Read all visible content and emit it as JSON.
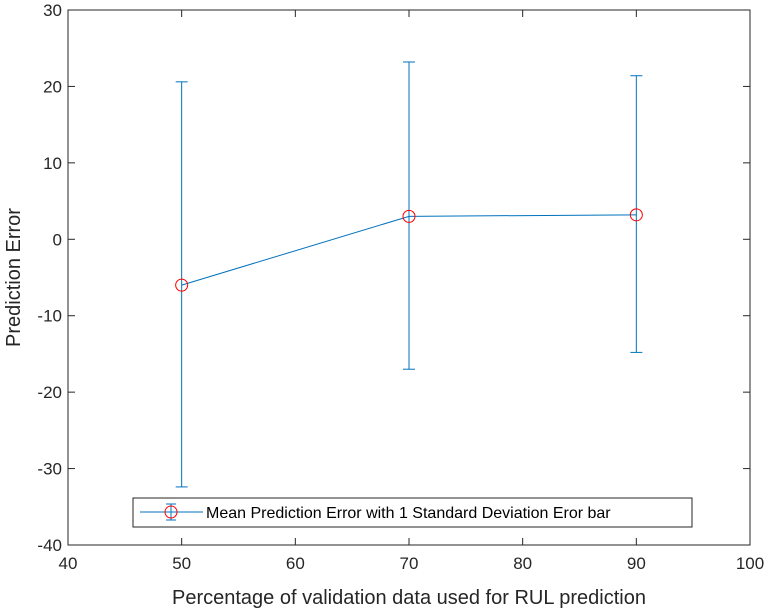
{
  "chart_data": {
    "type": "line",
    "title": "",
    "xlabel": "Percentage of validation data used for RUL prediction",
    "ylabel": "Prediction Error",
    "xlim": [
      40,
      100
    ],
    "ylim": [
      -40,
      30
    ],
    "xticks": [
      40,
      50,
      60,
      70,
      80,
      90,
      100
    ],
    "yticks": [
      -40,
      -30,
      -20,
      -10,
      0,
      10,
      20,
      30
    ],
    "grid": false,
    "legend_position": "bottom",
    "series": [
      {
        "name": "Mean Prediction Error with 1 Standard Deviation Eror bar",
        "x": [
          50,
          70,
          90
        ],
        "y": [
          -6,
          3,
          3.2
        ],
        "error_lower": [
          -32.4,
          -17,
          -14.8
        ],
        "error_upper": [
          20.6,
          23.2,
          21.4
        ],
        "line_color": "#0072BD",
        "marker": "circle",
        "marker_color": "#FF0000"
      }
    ]
  }
}
